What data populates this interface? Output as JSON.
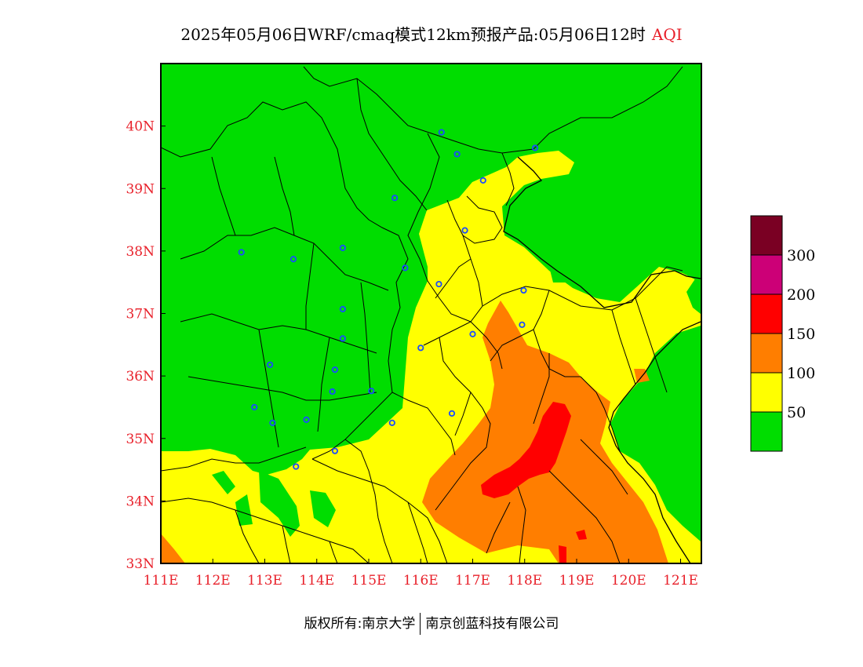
{
  "title": {
    "main": "2025年05月06日WRF/cmaq模式12km预报产品:05月06日12时",
    "variable": "AQI"
  },
  "map": {
    "lon_ticks": [
      "111E",
      "112E",
      "113E",
      "114E",
      "115E",
      "116E",
      "117E",
      "118E",
      "119E",
      "120E",
      "121E"
    ],
    "lat_ticks": [
      "33N",
      "34N",
      "35N",
      "36N",
      "37N",
      "38N",
      "39N",
      "40N"
    ],
    "lon_range": [
      111,
      121.4
    ],
    "lat_range": [
      33,
      41
    ],
    "colors": {
      "good": "#00dd00",
      "moderate": "#ffff00",
      "unhealthy_sensitive": "#ff7e00",
      "unhealthy": "#ff0000",
      "very_unhealthy": "#cc0077",
      "hazardous": "#7a0023",
      "boundary": "#000000",
      "city_marker": "#1a4cff"
    },
    "cities": [
      {
        "lon": 116.4,
        "lat": 39.9
      },
      {
        "lon": 116.7,
        "lat": 39.55
      },
      {
        "lon": 118.2,
        "lat": 39.65
      },
      {
        "lon": 117.2,
        "lat": 39.13
      },
      {
        "lon": 115.5,
        "lat": 38.85
      },
      {
        "lon": 116.85,
        "lat": 38.33
      },
      {
        "lon": 112.55,
        "lat": 37.98
      },
      {
        "lon": 113.55,
        "lat": 37.87
      },
      {
        "lon": 114.5,
        "lat": 38.05
      },
      {
        "lon": 115.7,
        "lat": 37.73
      },
      {
        "lon": 116.35,
        "lat": 37.47
      },
      {
        "lon": 117.98,
        "lat": 37.37
      },
      {
        "lon": 114.5,
        "lat": 37.07
      },
      {
        "lon": 117.95,
        "lat": 36.82
      },
      {
        "lon": 117.0,
        "lat": 36.67
      },
      {
        "lon": 114.5,
        "lat": 36.6
      },
      {
        "lon": 116.0,
        "lat": 36.45
      },
      {
        "lon": 113.1,
        "lat": 36.18
      },
      {
        "lon": 114.35,
        "lat": 36.1
      },
      {
        "lon": 114.3,
        "lat": 35.75
      },
      {
        "lon": 115.05,
        "lat": 35.76
      },
      {
        "lon": 112.8,
        "lat": 35.5
      },
      {
        "lon": 116.6,
        "lat": 35.4
      },
      {
        "lon": 113.8,
        "lat": 35.3
      },
      {
        "lon": 113.15,
        "lat": 35.25
      },
      {
        "lon": 115.45,
        "lat": 35.25
      },
      {
        "lon": 114.35,
        "lat": 34.8
      },
      {
        "lon": 113.6,
        "lat": 34.55
      }
    ]
  },
  "legend": {
    "labels": [
      "300",
      "200",
      "150",
      "100",
      "50"
    ],
    "colors": [
      "#7a0023",
      "#cc0077",
      "#ff0000",
      "#ff7e00",
      "#ffff00",
      "#00dd00"
    ]
  },
  "footer": {
    "left": "版权所有:南京大学",
    "right": "南京创蓝科技有限公司"
  }
}
